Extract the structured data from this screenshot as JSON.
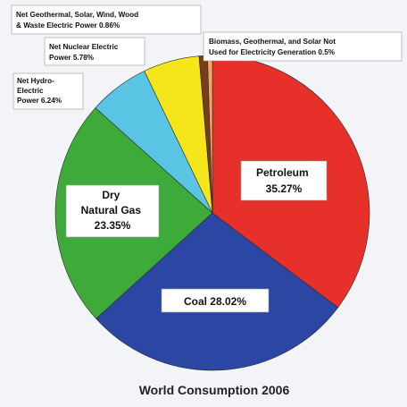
{
  "chart_data": {
    "type": "pie",
    "title": "World Consumption 2006",
    "slices": [
      {
        "name": "Petroleum",
        "label": "Petroleum",
        "value_text": "35.27%",
        "value": 35.27,
        "color": "#e8302a"
      },
      {
        "name": "Coal",
        "label": "Coal",
        "value_text": "28.02%",
        "value": 28.02,
        "color": "#2b47a3"
      },
      {
        "name": "Dry Natural Gas",
        "label": "Dry Natural Gas",
        "value_text": "23.35%",
        "value": 23.35,
        "color": "#3daa3a"
      },
      {
        "name": "Net Hydro-Electric Power",
        "label": "Net Hydro-Electric Power",
        "value_text": "6.24%",
        "value": 6.24,
        "color": "#59c4e3"
      },
      {
        "name": "Net Nuclear Electric Power",
        "label": "Net Nuclear Electric Power",
        "value_text": "5.78%",
        "value": 5.78,
        "color": "#f5e61c"
      },
      {
        "name": "Net Geothermal, Solar, Wind, Wood & Waste Electric Power",
        "label": "Net Geothermal, Solar, Wind, Wood & Waste Electric Power",
        "value_text": "0.86%",
        "value": 0.86,
        "color": "#7a3d1c"
      },
      {
        "name": "Biomass, Geothermal, and Solar Not Used for Electricity Generation",
        "label": "Biomass, Geothermal, and Solar Not Used for Electricity Generation",
        "value_text": "0.5%",
        "value": 0.5,
        "color": "#f0a868"
      }
    ]
  },
  "labels": {
    "petroleum": [
      "Petroleum",
      "35.27%"
    ],
    "coal": [
      "Coal  28.02%"
    ],
    "gas": [
      "Dry",
      "Natural Gas",
      "23.35%"
    ],
    "hydro": [
      "Net Hydro-",
      "Electric",
      "Power 6.24%"
    ],
    "nuclear": [
      "Net Nuclear Electric",
      "Power  5.78%"
    ],
    "geo": [
      "Net Geothermal, Solar, Wind, Wood",
      "& Waste Electric Power  0.86%"
    ],
    "biomass": [
      "Biomass, Geothermal, and Solar Not",
      "Used for Electricity Generation  0.5%"
    ]
  }
}
